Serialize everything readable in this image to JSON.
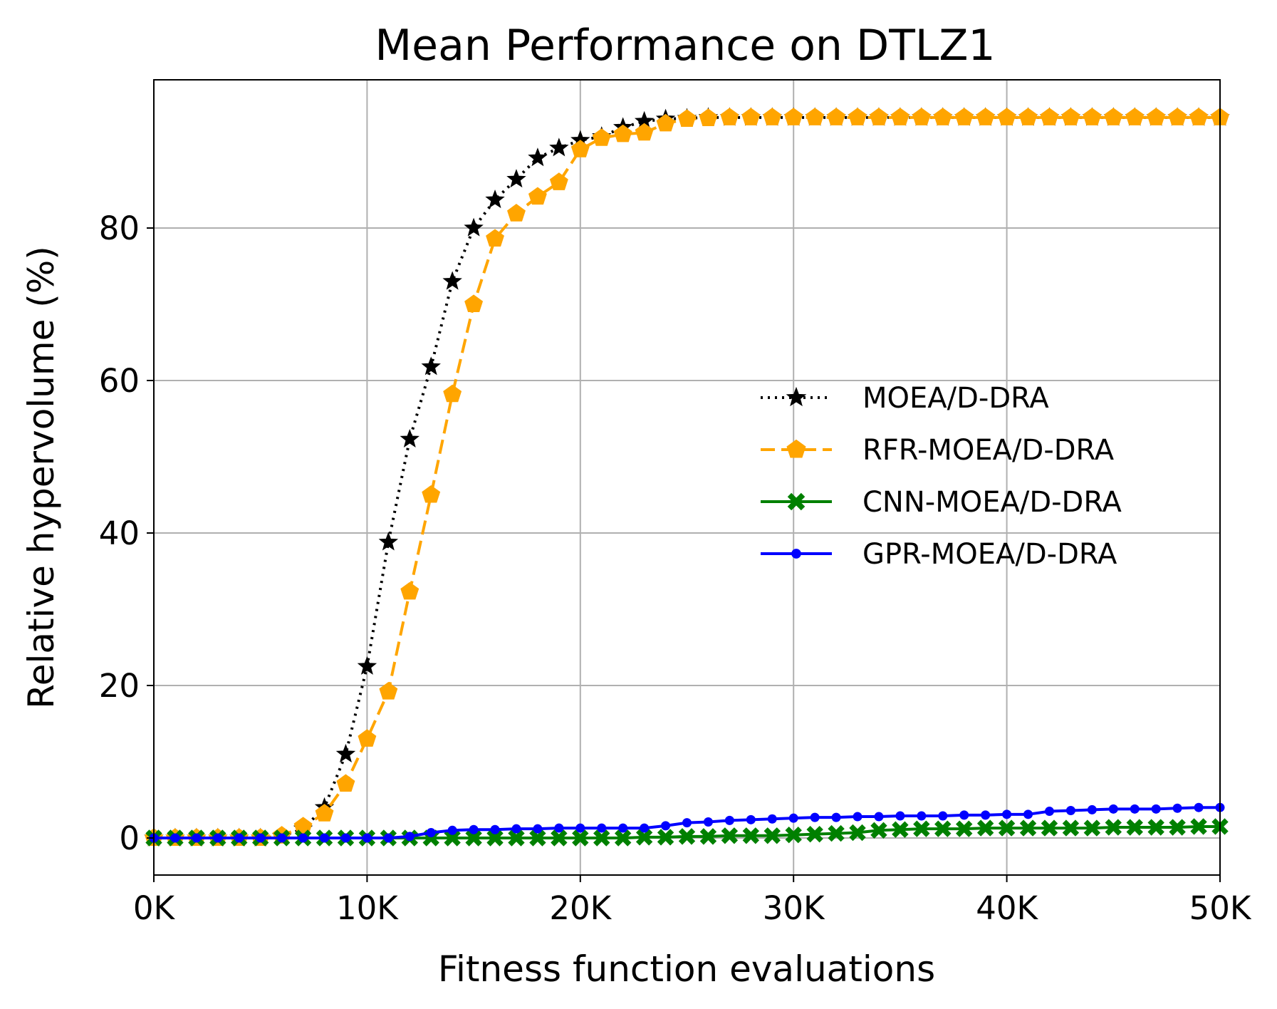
{
  "chart_data": {
    "type": "line",
    "title": "Mean Performance on DTLZ1",
    "xlabel": "Fitness function evaluations",
    "ylabel": "Relative hypervolume (%)",
    "xlim": [
      0,
      50000
    ],
    "ylim": [
      -5,
      99
    ],
    "grid": true,
    "legend_position": "center-right",
    "x_ticks": [
      {
        "value": 0,
        "label": "0K"
      },
      {
        "value": 10000,
        "label": "10K"
      },
      {
        "value": 20000,
        "label": "20K"
      },
      {
        "value": 30000,
        "label": "30K"
      },
      {
        "value": 40000,
        "label": "40K"
      },
      {
        "value": 50000,
        "label": "50K"
      }
    ],
    "y_ticks": [
      {
        "value": 0,
        "label": "0"
      },
      {
        "value": 20,
        "label": "20"
      },
      {
        "value": 40,
        "label": "40"
      },
      {
        "value": 60,
        "label": "60"
      },
      {
        "value": 80,
        "label": "80"
      }
    ],
    "x": [
      0,
      1000,
      2000,
      3000,
      4000,
      5000,
      6000,
      7000,
      8000,
      9000,
      10000,
      11000,
      12000,
      13000,
      14000,
      15000,
      16000,
      17000,
      18000,
      19000,
      20000,
      21000,
      22000,
      23000,
      24000,
      25000,
      26000,
      27000,
      28000,
      29000,
      30000,
      31000,
      32000,
      33000,
      34000,
      35000,
      36000,
      37000,
      38000,
      39000,
      40000,
      41000,
      42000,
      43000,
      44000,
      45000,
      46000,
      47000,
      48000,
      49000,
      50000
    ],
    "series": [
      {
        "name": "MOEA/D-DRA",
        "color": "#000000",
        "style": "dotted",
        "marker": "star",
        "values": [
          0,
          0,
          0,
          0,
          0,
          0,
          0.2,
          1.2,
          4,
          11,
          22.5,
          38.8,
          52.3,
          61.8,
          73,
          80,
          83.7,
          86.4,
          89.2,
          90.5,
          91.5,
          92,
          93.2,
          94,
          94.3,
          94.4,
          94.5,
          94.5,
          94.5,
          94.5,
          94.5,
          94.5,
          94.5,
          94.5,
          94.5,
          94.5,
          94.5,
          94.5,
          94.5,
          94.5,
          94.5,
          94.5,
          94.5,
          94.5,
          94.5,
          94.5,
          94.5,
          94.5,
          94.5,
          94.5,
          94.5
        ]
      },
      {
        "name": "RFR-MOEA/D-DRA",
        "color": "#ffa500",
        "style": "dashed",
        "marker": "pentagon",
        "values": [
          0,
          0,
          0,
          0,
          0,
          0,
          0.3,
          1.5,
          3.2,
          7.1,
          13,
          19.2,
          32.3,
          45,
          58.2,
          70,
          78.6,
          81.9,
          84.1,
          86,
          90.3,
          91.8,
          92.3,
          92.5,
          93.7,
          94.3,
          94.4,
          94.5,
          94.5,
          94.5,
          94.5,
          94.5,
          94.5,
          94.5,
          94.5,
          94.5,
          94.5,
          94.5,
          94.5,
          94.5,
          94.5,
          94.5,
          94.5,
          94.5,
          94.5,
          94.5,
          94.5,
          94.5,
          94.5,
          94.5,
          94.5
        ]
      },
      {
        "name": "CNN-MOEA/D-DRA",
        "color": "#008000",
        "style": "solid",
        "marker": "x-filled",
        "values": [
          0,
          0,
          0,
          0,
          0,
          0,
          0,
          0,
          0,
          0,
          0,
          0,
          0,
          0,
          0,
          0,
          0,
          0,
          0,
          0,
          0,
          0,
          0,
          0.1,
          0.1,
          0.2,
          0.2,
          0.3,
          0.3,
          0.3,
          0.4,
          0.5,
          0.6,
          0.7,
          1,
          1.1,
          1.2,
          1.2,
          1.2,
          1.3,
          1.3,
          1.3,
          1.3,
          1.3,
          1.3,
          1.4,
          1.4,
          1.4,
          1.4,
          1.5,
          1.5
        ]
      },
      {
        "name": "GPR-MOEA/D-DRA",
        "color": "#0000ff",
        "style": "solid",
        "marker": "dot",
        "values": [
          0,
          0,
          0,
          0,
          0,
          0,
          0,
          0,
          0,
          0,
          0,
          0,
          0.2,
          0.7,
          1,
          1.1,
          1.1,
          1.2,
          1.2,
          1.3,
          1.3,
          1.3,
          1.3,
          1.3,
          1.6,
          2,
          2.1,
          2.3,
          2.4,
          2.5,
          2.6,
          2.7,
          2.7,
          2.8,
          2.8,
          2.9,
          2.9,
          2.9,
          3,
          3,
          3.1,
          3.1,
          3.5,
          3.6,
          3.7,
          3.8,
          3.8,
          3.8,
          3.9,
          4,
          4
        ]
      }
    ]
  }
}
